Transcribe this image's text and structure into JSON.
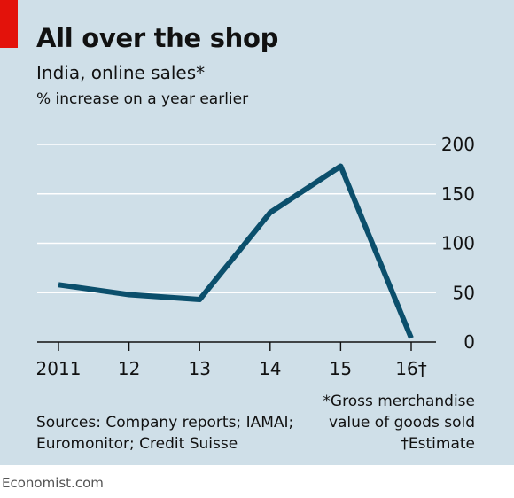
{
  "header": {
    "title": "All over the shop",
    "subtitle": "India, online sales*",
    "unit": "% increase on a year earlier"
  },
  "footer": {
    "sources": "Sources: Company reports; IAMAI; Euromonitor; Credit Suisse",
    "note_1": "*Gross merchandise",
    "note_2": "value of goods sold",
    "note_3": "†Estimate",
    "brand": "Economist.com"
  },
  "colors": {
    "line": "#0b4f6c",
    "background": "#cfdfe8",
    "accent": "#e3120b"
  },
  "chart_data": {
    "type": "line",
    "x": [
      "2011",
      "12",
      "13",
      "14",
      "15",
      "16†"
    ],
    "series": [
      {
        "values": [
          58,
          48,
          43,
          131,
          178,
          4
        ]
      }
    ],
    "yticks": [
      "0",
      "50",
      "100",
      "150",
      "200"
    ],
    "ylim": [
      0,
      200
    ],
    "grid": true,
    "y_axis_side": "right"
  }
}
